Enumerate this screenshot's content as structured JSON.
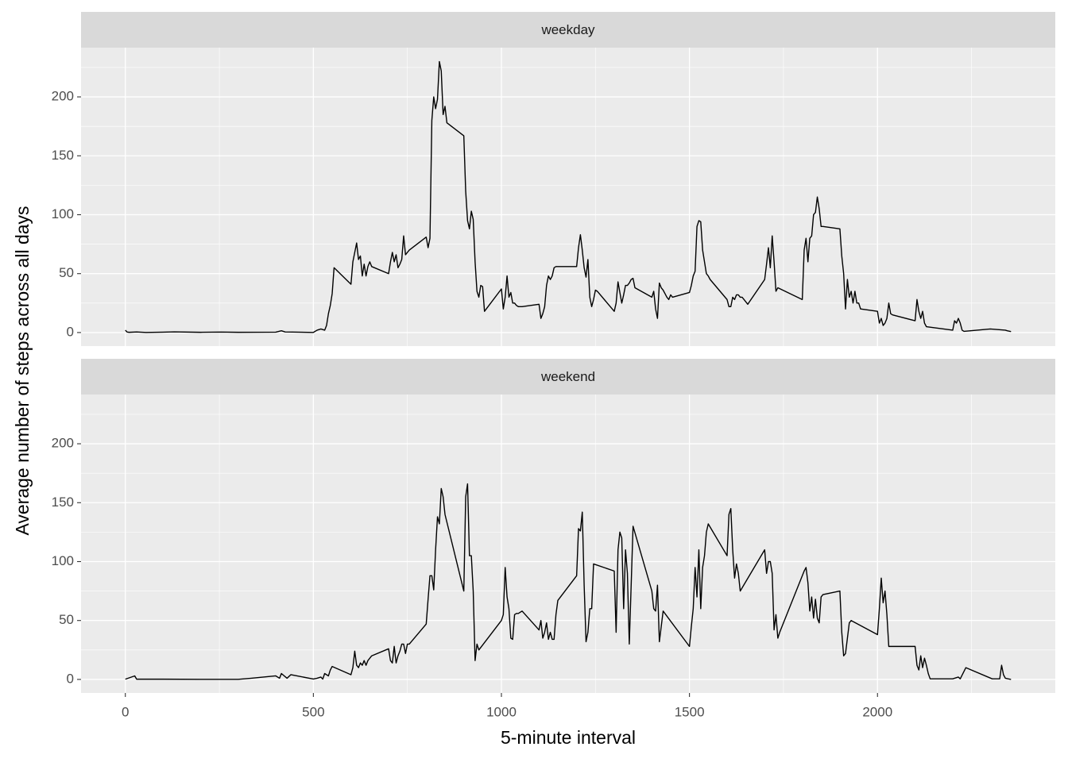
{
  "chart_data": {
    "type": "line",
    "xlabel": "5-minute interval",
    "ylabel": "Average number of steps across all days",
    "xlim": [
      -117.75,
      2472.75
    ],
    "ylim": [
      -11.5,
      241.8
    ],
    "xticks": [
      0,
      500,
      1000,
      1500,
      2000
    ],
    "yticks": [
      0,
      50,
      100,
      150,
      200
    ],
    "x_minor_grid": [
      250,
      750,
      1250,
      1750,
      2250
    ],
    "y_minor_grid": [
      25,
      75,
      125,
      175,
      225
    ],
    "grid": true,
    "color": "#000000",
    "facets": [
      {
        "title": "weekday",
        "x": [
          0,
          5,
          10,
          30,
          55,
          100,
          130,
          200,
          255,
          300,
          400,
          415,
          425,
          445,
          500,
          510,
          520,
          530,
          535,
          540,
          545,
          550,
          555,
          600,
          605,
          610,
          615,
          620,
          625,
          630,
          635,
          640,
          645,
          650,
          655,
          700,
          705,
          710,
          715,
          720,
          725,
          730,
          735,
          740,
          745,
          750,
          755,
          800,
          805,
          810,
          815,
          820,
          825,
          830,
          835,
          840,
          845,
          850,
          855,
          900,
          905,
          910,
          915,
          920,
          925,
          930,
          935,
          940,
          945,
          950,
          955,
          1000,
          1005,
          1010,
          1015,
          1020,
          1025,
          1030,
          1035,
          1040,
          1045,
          1050,
          1055,
          1100,
          1105,
          1110,
          1115,
          1120,
          1125,
          1130,
          1135,
          1140,
          1145,
          1150,
          1155,
          1200,
          1205,
          1210,
          1215,
          1220,
          1225,
          1230,
          1235,
          1240,
          1245,
          1250,
          1255,
          1300,
          1305,
          1310,
          1315,
          1320,
          1325,
          1330,
          1335,
          1340,
          1345,
          1350,
          1355,
          1400,
          1405,
          1410,
          1415,
          1420,
          1425,
          1430,
          1435,
          1440,
          1445,
          1450,
          1455,
          1500,
          1505,
          1510,
          1515,
          1520,
          1525,
          1530,
          1535,
          1540,
          1545,
          1550,
          1555,
          1600,
          1605,
          1610,
          1615,
          1620,
          1625,
          1630,
          1635,
          1640,
          1645,
          1650,
          1655,
          1700,
          1705,
          1710,
          1715,
          1720,
          1725,
          1730,
          1735,
          1800,
          1805,
          1810,
          1815,
          1820,
          1825,
          1830,
          1835,
          1840,
          1845,
          1850,
          1855,
          1900,
          1905,
          1910,
          1915,
          1920,
          1925,
          1930,
          1935,
          1940,
          1945,
          1950,
          1955,
          2000,
          2005,
          2010,
          2015,
          2020,
          2025,
          2030,
          2035,
          2040,
          2100,
          2105,
          2110,
          2115,
          2120,
          2125,
          2130,
          2200,
          2205,
          2210,
          2215,
          2220,
          2225,
          2230,
          2300,
          2340,
          2345,
          2355
        ],
        "values": [
          2.0,
          0.4,
          0.2,
          0.5,
          0.1,
          0.3,
          0.6,
          0.2,
          0.4,
          0.2,
          0.3,
          1.5,
          0.5,
          0.4,
          0.1,
          2,
          3,
          2,
          6,
          16,
          23,
          33,
          55,
          41,
          60,
          68,
          76,
          62,
          65,
          48,
          58,
          48,
          56,
          60,
          56,
          50,
          60,
          68,
          60,
          66,
          55,
          58,
          62,
          82,
          66,
          68,
          70,
          81,
          72,
          80,
          180,
          200,
          190,
          198,
          230,
          222,
          185,
          192,
          178,
          167,
          120,
          95,
          88,
          103,
          96,
          60,
          35,
          30,
          40,
          39,
          18,
          37,
          20,
          30,
          48,
          30,
          34,
          25,
          25,
          23,
          22,
          22,
          22,
          24,
          12,
          16,
          22,
          40,
          48,
          45,
          48,
          55,
          56,
          56,
          56,
          56,
          72,
          83,
          70,
          55,
          47,
          62,
          30,
          22,
          28,
          36,
          35,
          18,
          25,
          43,
          34,
          25,
          32,
          40,
          40,
          42,
          45,
          46,
          38,
          30,
          35,
          20,
          12,
          42,
          38,
          36,
          33,
          30,
          28,
          32,
          30,
          34,
          40,
          48,
          52,
          90,
          95,
          94,
          70,
          60,
          50,
          48,
          45,
          28,
          22,
          22,
          30,
          28,
          32,
          32,
          30,
          30,
          28,
          26,
          24,
          45,
          58,
          72,
          55,
          82,
          60,
          35,
          38,
          28,
          70,
          80,
          60,
          80,
          82,
          100,
          102,
          115,
          105,
          90,
          90,
          88,
          65,
          50,
          20,
          45,
          30,
          35,
          25,
          35,
          25,
          25,
          20,
          18,
          8,
          12,
          6,
          8,
          12,
          25,
          16,
          15,
          10,
          28,
          18,
          12,
          18,
          8,
          5,
          2,
          10,
          8,
          12,
          8,
          2,
          1,
          3,
          2,
          1.5,
          0.8
        ]
      },
      {
        "title": "weekend",
        "x": [
          0,
          25,
          30,
          100,
          200,
          300,
          335,
          400,
          410,
          415,
          430,
          440,
          500,
          510,
          520,
          525,
          530,
          540,
          545,
          550,
          600,
          605,
          610,
          615,
          620,
          625,
          630,
          635,
          640,
          645,
          650,
          655,
          700,
          705,
          710,
          715,
          720,
          725,
          730,
          735,
          740,
          745,
          750,
          755,
          800,
          805,
          810,
          815,
          820,
          825,
          830,
          835,
          840,
          845,
          850,
          900,
          905,
          910,
          915,
          920,
          925,
          930,
          935,
          940,
          1000,
          1005,
          1010,
          1015,
          1020,
          1025,
          1030,
          1035,
          1040,
          1045,
          1055,
          1100,
          1105,
          1110,
          1115,
          1120,
          1125,
          1130,
          1135,
          1140,
          1145,
          1150,
          1200,
          1205,
          1210,
          1215,
          1220,
          1225,
          1230,
          1235,
          1240,
          1245,
          1300,
          1305,
          1310,
          1315,
          1320,
          1325,
          1330,
          1335,
          1340,
          1350,
          1400,
          1405,
          1410,
          1415,
          1420,
          1425,
          1430,
          1500,
          1505,
          1510,
          1515,
          1520,
          1525,
          1530,
          1535,
          1540,
          1545,
          1550,
          1600,
          1605,
          1610,
          1615,
          1620,
          1625,
          1630,
          1635,
          1700,
          1705,
          1710,
          1715,
          1720,
          1725,
          1730,
          1735,
          1740,
          1805,
          1810,
          1815,
          1820,
          1825,
          1830,
          1835,
          1840,
          1845,
          1850,
          1855,
          1900,
          1905,
          1910,
          1915,
          1920,
          1925,
          1930,
          2000,
          2005,
          2010,
          2015,
          2020,
          2025,
          2030,
          2035,
          2100,
          2105,
          2110,
          2115,
          2120,
          2125,
          2130,
          2135,
          2140,
          2200,
          2215,
          2220,
          2235,
          2305,
          2325,
          2330,
          2335,
          2340,
          2355
        ],
        "values": [
          0.2,
          3,
          0.2,
          0.2,
          0.1,
          0.1,
          1,
          3,
          1,
          5,
          1,
          4,
          0.3,
          1,
          2,
          0.3,
          5,
          3,
          8,
          11,
          4,
          10,
          24,
          12,
          10,
          14,
          12,
          16,
          12,
          16,
          18,
          20,
          26,
          16,
          14,
          28,
          14,
          20,
          24,
          30,
          30,
          22,
          30,
          30,
          47,
          68,
          88,
          88,
          76,
          110,
          138,
          132,
          162,
          155,
          140,
          75,
          155,
          166,
          105,
          105,
          75,
          16,
          30,
          25,
          50,
          55,
          95,
          70,
          60,
          35,
          34,
          55,
          56,
          56,
          58,
          42,
          50,
          35,
          40,
          48,
          34,
          40,
          34,
          34,
          55,
          67,
          88,
          128,
          126,
          142,
          80,
          32,
          40,
          60,
          60,
          98,
          92,
          40,
          110,
          125,
          120,
          60,
          110,
          90,
          30,
          130,
          75,
          60,
          58,
          80,
          32,
          45,
          58,
          28,
          45,
          60,
          95,
          70,
          110,
          60,
          95,
          105,
          125,
          132,
          105,
          140,
          145,
          110,
          86,
          98,
          90,
          75,
          110,
          90,
          100,
          100,
          90,
          42,
          55,
          35,
          40,
          92,
          95,
          82,
          58,
          70,
          52,
          68,
          52,
          48,
          70,
          72,
          75,
          40,
          20,
          22,
          35,
          48,
          50,
          38,
          60,
          86,
          65,
          75,
          55,
          28,
          28,
          28,
          12,
          8,
          20,
          10,
          18,
          12,
          5,
          0.5,
          0.5,
          2,
          0.5,
          10,
          0.5,
          0.5,
          12,
          4,
          1,
          0
        ]
      }
    ]
  }
}
